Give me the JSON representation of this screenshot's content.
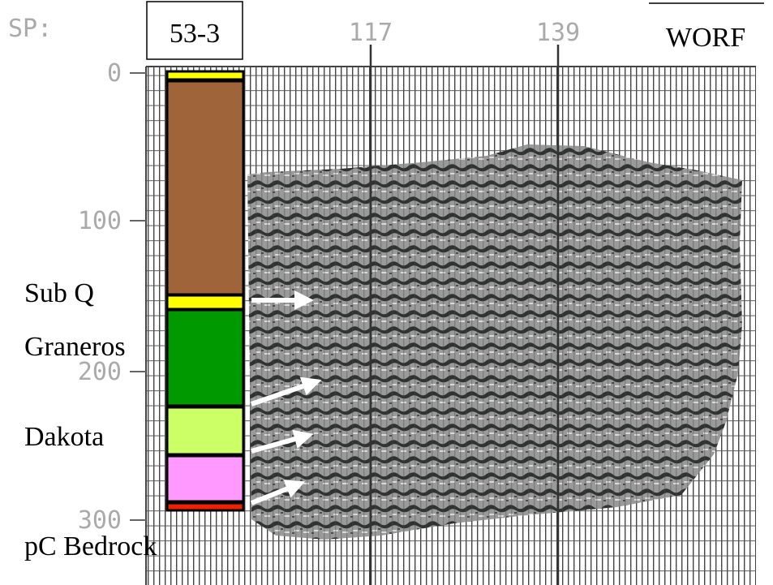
{
  "header": {
    "sp_label": "SP:",
    "well": "53-3",
    "line": "WORF"
  },
  "shotpoints": [
    "117",
    "139"
  ],
  "time_ticks": [
    "0",
    "100",
    "200",
    "300"
  ],
  "formations": [
    "Sub Q",
    "Graneros",
    "Dakota",
    "pC Bedrock"
  ]
}
